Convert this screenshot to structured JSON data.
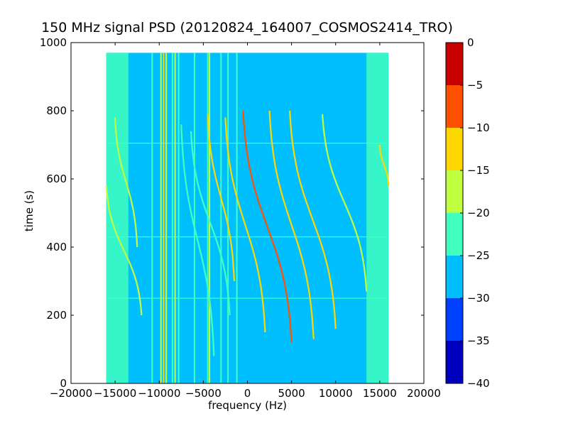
{
  "chart_data": {
    "type": "heatmap",
    "title": "150 MHz signal PSD (20120824_164007_COSMOS2414_TRO)",
    "xlabel": "frequency (Hz)",
    "ylabel": "time (s)",
    "xlim": [
      -20000,
      20000
    ],
    "ylim": [
      0,
      1000
    ],
    "xticks": [
      -20000,
      -15000,
      -10000,
      -5000,
      0,
      5000,
      10000,
      15000,
      20000
    ],
    "yticks": [
      0,
      200,
      400,
      600,
      800,
      1000
    ],
    "data_extent": {
      "freq": [
        -16000,
        16000
      ],
      "time": [
        0,
        970
      ]
    },
    "colorbar": {
      "range": [
        -40,
        0
      ],
      "ticks": [
        0,
        -5,
        -10,
        -15,
        -20,
        -25,
        -30,
        -35,
        -40
      ],
      "levels": [
        {
          "from": -40,
          "to": -35,
          "color": "#0000bf"
        },
        {
          "from": -35,
          "to": -30,
          "color": "#0040ff"
        },
        {
          "from": -30,
          "to": -25,
          "color": "#00bfff"
        },
        {
          "from": -25,
          "to": -20,
          "color": "#40ffbf"
        },
        {
          "from": -20,
          "to": -15,
          "color": "#bfff40"
        },
        {
          "from": -15,
          "to": -10,
          "color": "#ffd700"
        },
        {
          "from": -10,
          "to": -5,
          "color": "#ff5000"
        },
        {
          "from": -5,
          "to": 0,
          "color": "#c80000"
        }
      ]
    },
    "background_level": -27,
    "edge_bands": [
      {
        "freq": [
          -16000,
          -13500
        ],
        "level": -22
      },
      {
        "freq": [
          13500,
          16000
        ],
        "level": -22
      }
    ],
    "vertical_lines": [
      {
        "freq": -10800,
        "level": -22
      },
      {
        "freq": -9800,
        "level": -18
      },
      {
        "freq": -9500,
        "level": -13
      },
      {
        "freq": -9200,
        "level": -18
      },
      {
        "freq": -8500,
        "level": -22
      },
      {
        "freq": -8200,
        "level": -18
      },
      {
        "freq": -7800,
        "level": -22
      },
      {
        "freq": -6000,
        "level": -22
      },
      {
        "freq": -4500,
        "level": -22
      },
      {
        "freq": -4300,
        "level": -18
      },
      {
        "freq": -3000,
        "level": -22
      },
      {
        "freq": -2200,
        "level": -22
      },
      {
        "freq": -1200,
        "level": -22
      }
    ],
    "doppler_tracks": [
      {
        "t_start": 780,
        "t_end": 400,
        "f_start": -15000,
        "f_end": -12500,
        "level": -17
      },
      {
        "t_start": 580,
        "t_end": 200,
        "f_start": -16000,
        "f_end": -12000,
        "level": -18
      },
      {
        "t_start": 760,
        "t_end": 80,
        "f_start": -7500,
        "f_end": -3800,
        "level": -21
      },
      {
        "t_start": 740,
        "t_end": 200,
        "f_start": -6400,
        "f_end": -2000,
        "level": -21
      },
      {
        "t_start": 790,
        "t_end": 300,
        "f_start": -4500,
        "f_end": -1500,
        "level": -14
      },
      {
        "t_start": 780,
        "t_end": 150,
        "f_start": -2500,
        "f_end": 2000,
        "level": -14
      },
      {
        "t_start": 800,
        "t_end": 120,
        "f_start": -500,
        "f_end": 5000,
        "level": -9
      },
      {
        "t_start": 800,
        "t_end": 130,
        "f_start": 2500,
        "f_end": 7500,
        "level": -14
      },
      {
        "t_start": 800,
        "t_end": 160,
        "f_start": 4800,
        "f_end": 10000,
        "level": -14
      },
      {
        "t_start": 790,
        "t_end": 270,
        "f_start": 8500,
        "f_end": 13500,
        "level": -18
      },
      {
        "t_start": 700,
        "t_end": 580,
        "f_start": 15000,
        "f_end": 16000,
        "level": -13
      }
    ],
    "horizontal_lines": [
      {
        "time": 705,
        "level": -22
      },
      {
        "time": 430,
        "level": -22
      },
      {
        "time": 250,
        "level": -22
      }
    ]
  }
}
